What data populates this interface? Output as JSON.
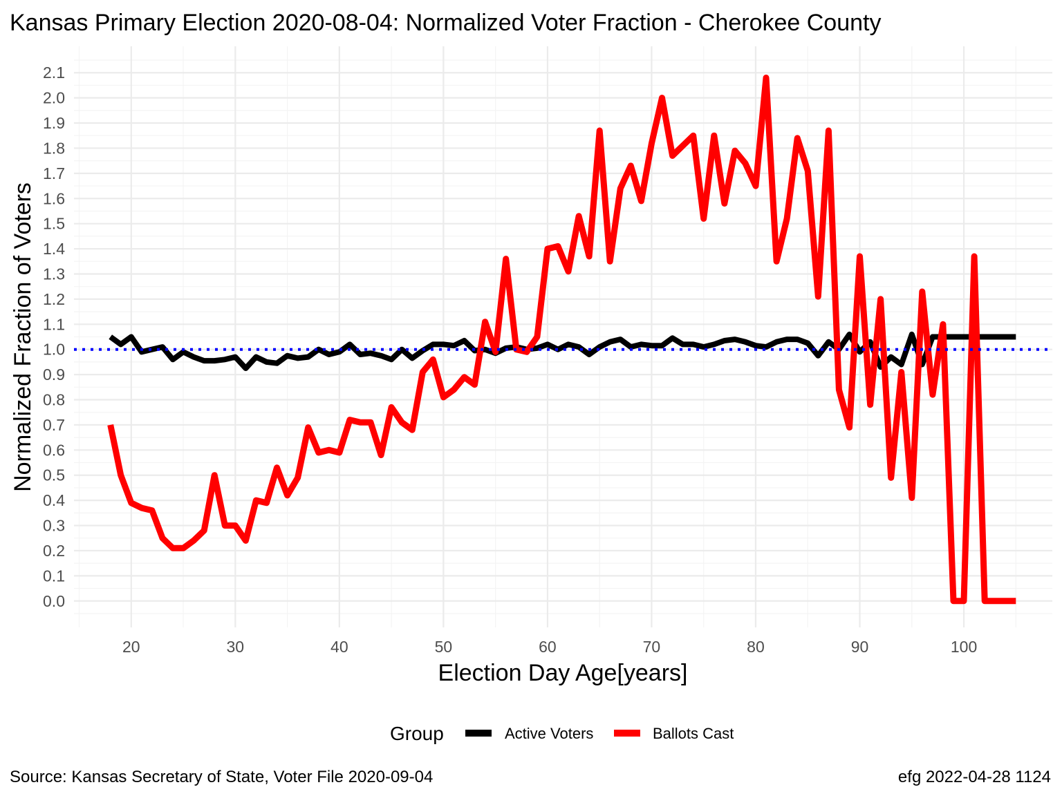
{
  "chart_data": {
    "type": "line",
    "title": "Kansas Primary Election 2020-08-04:  Normalized Voter Fraction - Cherokee County",
    "xlabel": "Election Day Age[years]",
    "ylabel": "Normalized Fraction of Voters",
    "xlim": [
      14.5,
      108.5
    ],
    "ylim": [
      -0.105,
      2.205
    ],
    "x_ticks": [
      20,
      30,
      40,
      50,
      60,
      70,
      80,
      90,
      100
    ],
    "y_ticks": [
      0.0,
      0.1,
      0.2,
      0.3,
      0.4,
      0.5,
      0.6,
      0.7,
      0.8,
      0.9,
      1.0,
      1.1,
      1.2,
      1.3,
      1.4,
      1.5,
      1.6,
      1.7,
      1.8,
      1.9,
      2.0,
      2.1
    ],
    "y_tick_labels": [
      "0.0",
      "0.1",
      "0.2",
      "0.3",
      "0.4",
      "0.5",
      "0.6",
      "0.7",
      "0.8",
      "0.9",
      "1.0",
      "1.1",
      "1.2",
      "1.3",
      "1.4",
      "1.5",
      "1.6",
      "1.7",
      "1.8",
      "1.9",
      "2.0",
      "2.1"
    ],
    "grid": true,
    "reference_line": {
      "y": 1.0,
      "style": "dotted",
      "color": "#0000ff"
    },
    "legend": {
      "title": "Group",
      "position": "bottom"
    },
    "series": [
      {
        "name": "Active Voters",
        "color": "#000000",
        "x": [
          18,
          19,
          20,
          21,
          22,
          23,
          24,
          25,
          26,
          27,
          28,
          29,
          30,
          31,
          32,
          33,
          34,
          35,
          36,
          37,
          38,
          39,
          40,
          41,
          42,
          43,
          44,
          45,
          46,
          47,
          48,
          49,
          50,
          51,
          52,
          53,
          54,
          55,
          56,
          57,
          58,
          59,
          60,
          61,
          62,
          63,
          64,
          65,
          66,
          67,
          68,
          69,
          70,
          71,
          72,
          73,
          74,
          75,
          76,
          77,
          78,
          79,
          80,
          81,
          82,
          83,
          84,
          85,
          86,
          87,
          88,
          89,
          90,
          91,
          92,
          93,
          94,
          95,
          96,
          97,
          98,
          99,
          100,
          101,
          102,
          103,
          104,
          105
        ],
        "y": [
          1.05,
          1.02,
          1.05,
          0.99,
          1.0,
          1.01,
          0.96,
          0.99,
          0.97,
          0.955,
          0.955,
          0.96,
          0.97,
          0.925,
          0.97,
          0.95,
          0.945,
          0.975,
          0.965,
          0.97,
          1.0,
          0.98,
          0.99,
          1.02,
          0.98,
          0.985,
          0.975,
          0.96,
          1.0,
          0.965,
          0.995,
          1.02,
          1.02,
          1.015,
          1.035,
          0.995,
          1.0,
          0.985,
          1.005,
          1.01,
          1.0,
          1.005,
          1.02,
          1.0,
          1.02,
          1.01,
          0.98,
          1.01,
          1.03,
          1.04,
          1.01,
          1.02,
          1.015,
          1.015,
          1.045,
          1.02,
          1.02,
          1.01,
          1.02,
          1.035,
          1.04,
          1.03,
          1.015,
          1.01,
          1.03,
          1.04,
          1.04,
          1.025,
          0.975,
          1.03,
          1.0,
          1.06,
          0.99,
          1.03,
          0.93,
          0.97,
          0.94,
          1.06,
          0.94,
          1.05,
          1.05,
          1.05,
          1.05,
          1.05,
          1.05,
          1.05,
          1.05,
          1.05
        ]
      },
      {
        "name": "Ballots Cast",
        "color": "#ff0000",
        "x": [
          18,
          19,
          20,
          21,
          22,
          23,
          24,
          25,
          26,
          27,
          28,
          29,
          30,
          31,
          32,
          33,
          34,
          35,
          36,
          37,
          38,
          39,
          40,
          41,
          42,
          43,
          44,
          45,
          46,
          47,
          48,
          49,
          50,
          51,
          52,
          53,
          54,
          55,
          56,
          57,
          58,
          59,
          60,
          61,
          62,
          63,
          64,
          65,
          66,
          67,
          68,
          69,
          70,
          71,
          72,
          73,
          74,
          75,
          76,
          77,
          78,
          79,
          80,
          81,
          82,
          83,
          84,
          85,
          86,
          87,
          88,
          89,
          90,
          91,
          92,
          93,
          94,
          95,
          96,
          97,
          98,
          99,
          100,
          101,
          102,
          103,
          104,
          105
        ],
        "y": [
          0.7,
          0.5,
          0.39,
          0.37,
          0.36,
          0.25,
          0.21,
          0.21,
          0.24,
          0.28,
          0.5,
          0.3,
          0.3,
          0.24,
          0.4,
          0.39,
          0.53,
          0.42,
          0.49,
          0.69,
          0.59,
          0.6,
          0.59,
          0.72,
          0.71,
          0.71,
          0.58,
          0.77,
          0.71,
          0.68,
          0.91,
          0.96,
          0.81,
          0.84,
          0.89,
          0.86,
          1.11,
          0.99,
          1.36,
          1.0,
          0.99,
          1.05,
          1.4,
          1.41,
          1.31,
          1.53,
          1.37,
          1.87,
          1.35,
          1.64,
          1.73,
          1.59,
          1.82,
          2.0,
          1.77,
          1.81,
          1.85,
          1.52,
          1.85,
          1.58,
          1.79,
          1.74,
          1.65,
          2.08,
          1.35,
          1.52,
          1.84,
          1.71,
          1.21,
          1.87,
          0.84,
          0.69,
          1.37,
          0.78,
          1.2,
          0.49,
          0.91,
          0.41,
          1.23,
          0.82,
          1.1,
          0.0,
          0.0,
          1.37,
          0.0,
          0.0,
          0.0,
          0.0
        ]
      }
    ]
  },
  "caption_left": "Source:  Kansas Secretary of State, Voter File  2020-09-04",
  "caption_right": "efg 2022-04-28 1124"
}
